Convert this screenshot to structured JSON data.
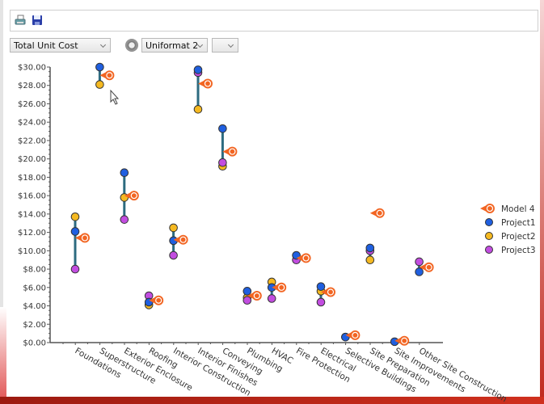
{
  "toolbar": {
    "print_icon": "printer-icon",
    "save_icon": "floppy-disk-icon"
  },
  "controls": {
    "metric_select": "Total Unit Cost",
    "refresh_icon": "refresh-icon",
    "classification_select": "Uniformat 2",
    "extra_select": ""
  },
  "chart_data": {
    "type": "scatter",
    "title": "",
    "xlabel": "",
    "ylabel": "",
    "ylim": [
      0,
      30
    ],
    "yticks": [
      "$0.00",
      "$2.00",
      "$4.00",
      "$6.00",
      "$8.00",
      "$10.00",
      "$12.00",
      "$14.00",
      "$16.00",
      "$18.00",
      "$20.00",
      "$22.00",
      "$24.00",
      "$26.00",
      "$28.00",
      "$30.00"
    ],
    "categories": [
      "Foundations",
      "Superstructure",
      "Exterior Enclosure",
      "Roofing",
      "Interior Construction",
      "Interior Finishes",
      "Conveying",
      "Plumbing",
      "HVAC",
      "Fire Protection",
      "Electrical",
      "Selective Buildings",
      "Site Preparation",
      "Site Improvements",
      "Other Site Construction"
    ],
    "legend_position": "right",
    "series": [
      {
        "name": "Model 4",
        "color": "#f26522",
        "values": [
          11.4,
          29.1,
          16.0,
          4.6,
          11.2,
          28.2,
          20.8,
          5.1,
          6.0,
          9.2,
          5.5,
          0.8,
          14.1,
          0.2,
          8.2
        ]
      },
      {
        "name": "Project1",
        "color": "#1f5fe0",
        "values": [
          12.1,
          30.0,
          18.5,
          4.4,
          11.1,
          29.7,
          23.3,
          5.6,
          6.0,
          9.5,
          6.1,
          0.6,
          10.3,
          0.1,
          7.7
        ]
      },
      {
        "name": "Project2",
        "color": "#f5b921",
        "values": [
          13.7,
          28.1,
          15.8,
          4.1,
          12.5,
          25.4,
          19.2,
          4.9,
          6.6,
          null,
          5.6,
          0.6,
          9.0,
          null,
          null
        ]
      },
      {
        "name": "Project3",
        "color": "#c24de0",
        "values": [
          8.0,
          null,
          13.4,
          5.1,
          9.5,
          29.4,
          19.6,
          4.6,
          4.8,
          9.0,
          4.4,
          null,
          10.0,
          null,
          8.8
        ]
      }
    ],
    "range_line_color": "#2d6b80"
  }
}
